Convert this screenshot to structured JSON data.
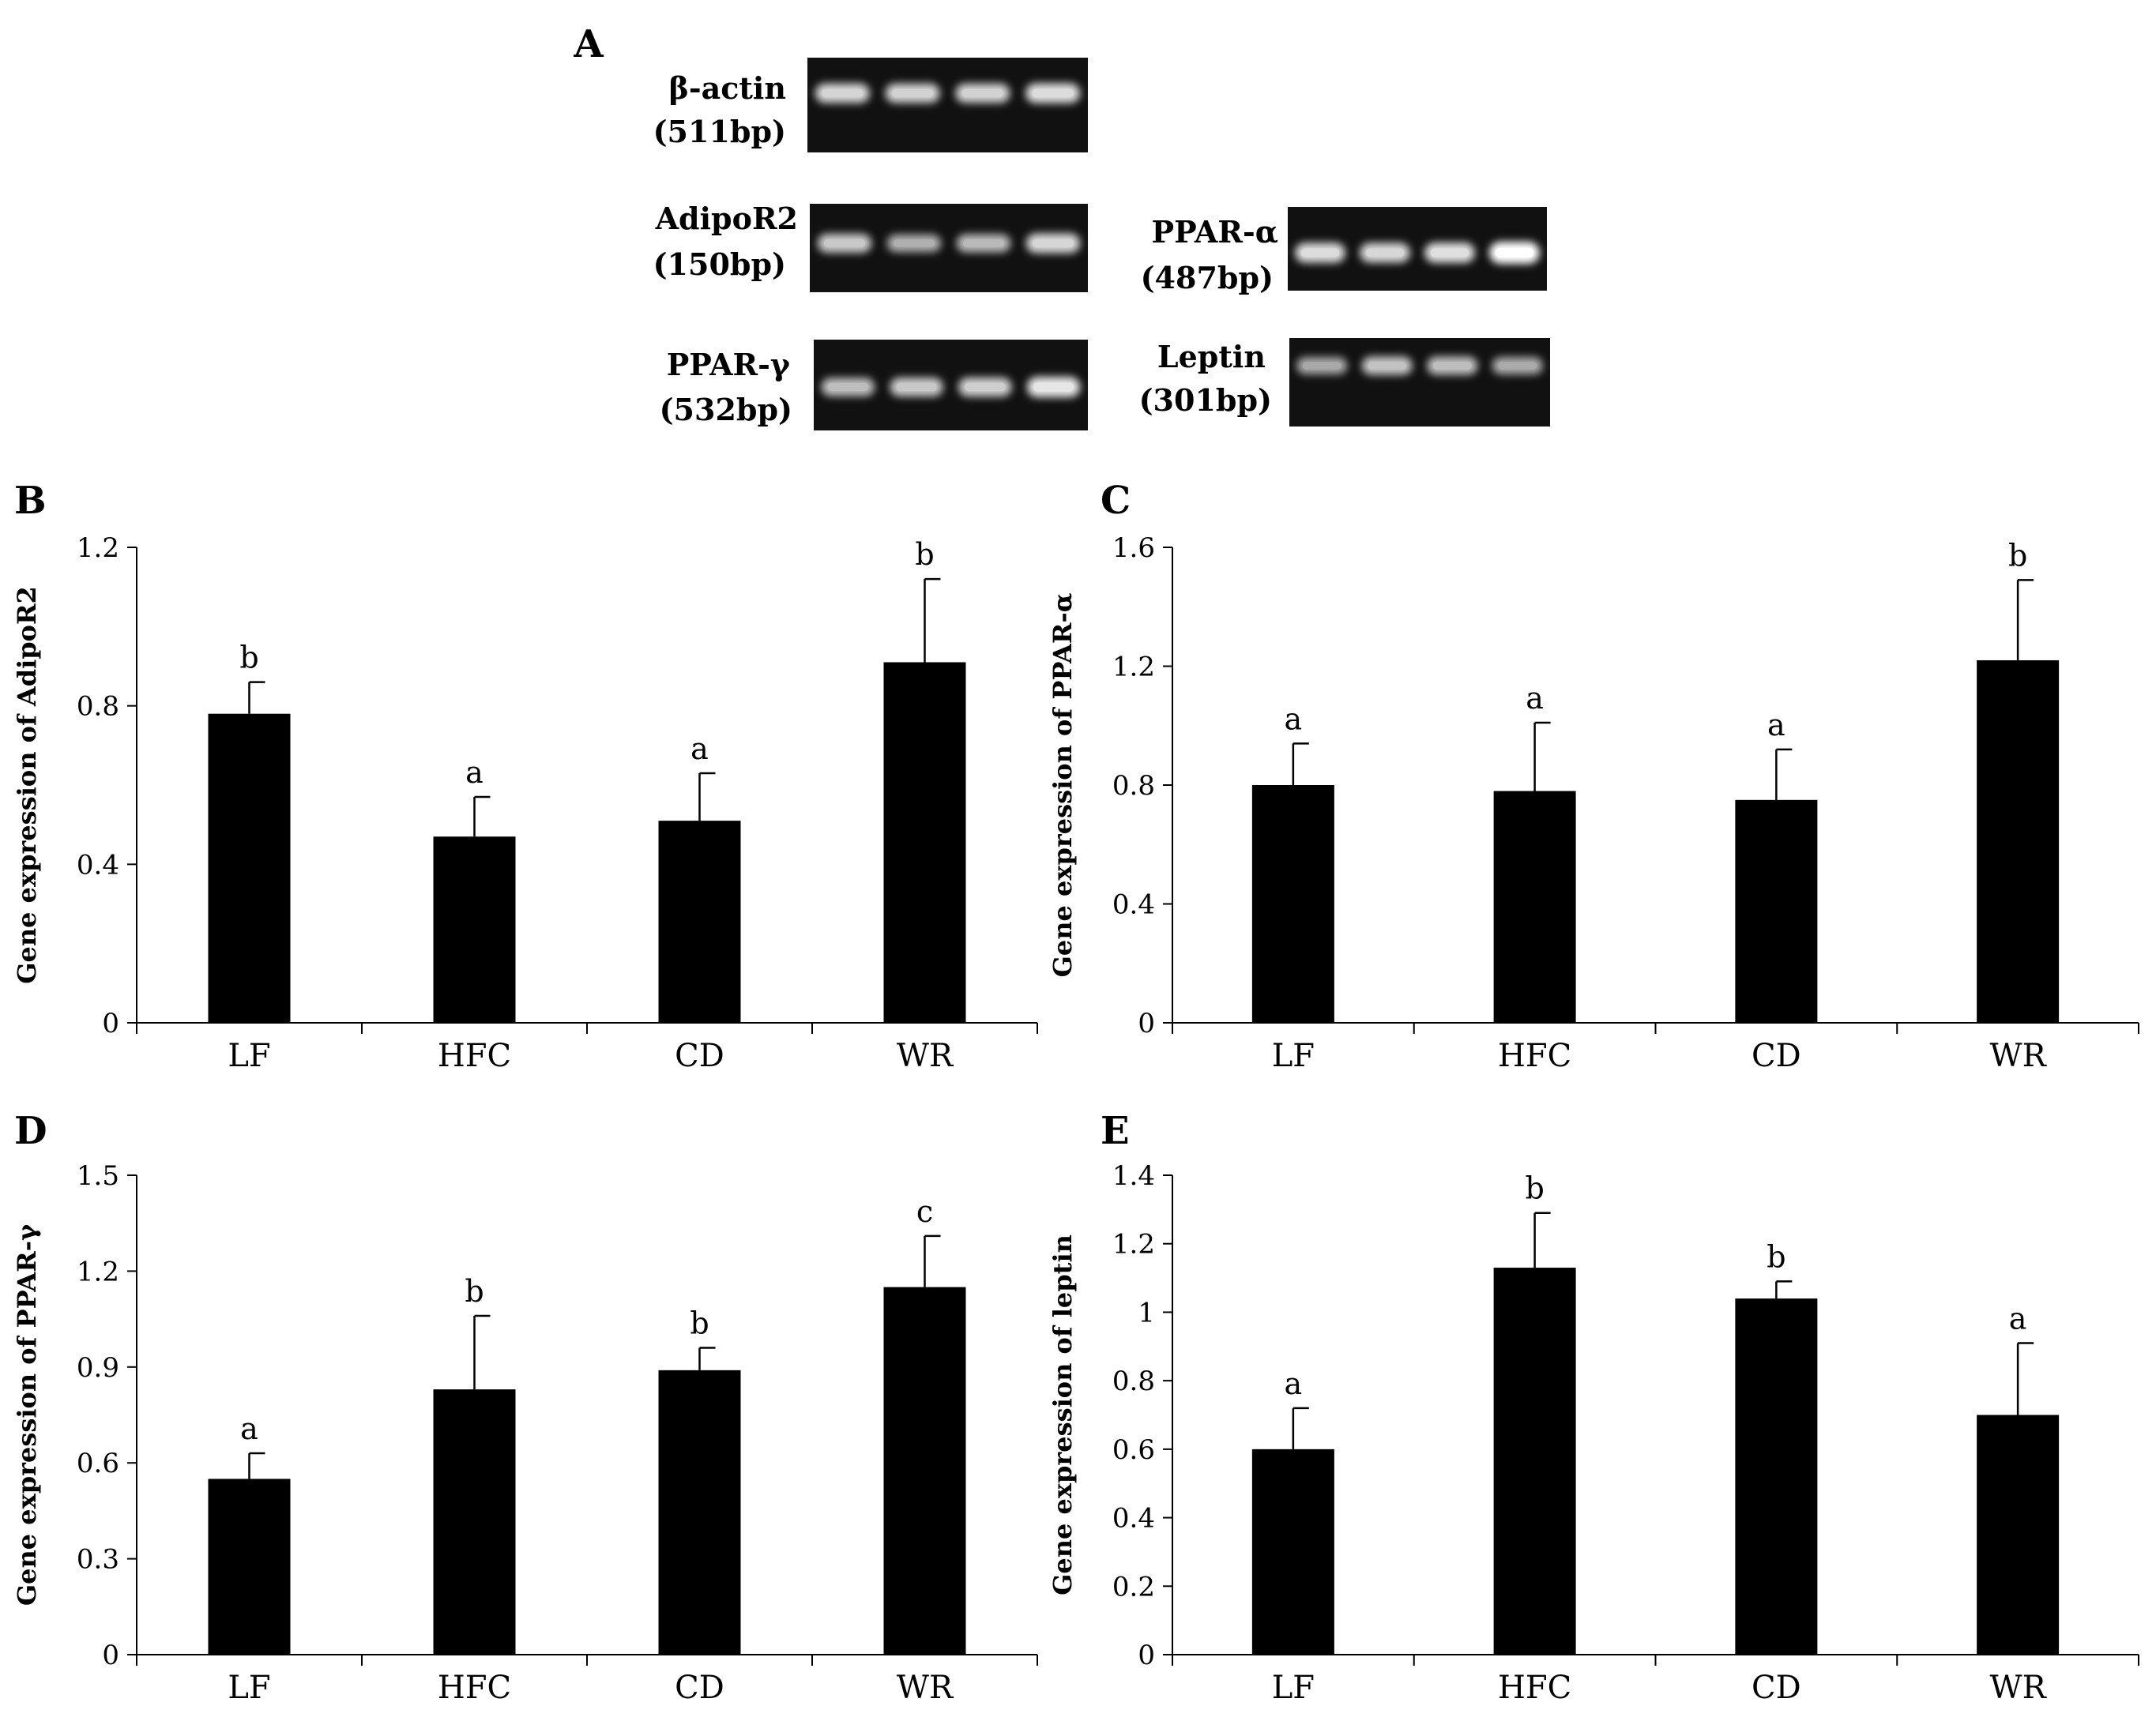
{
  "gel_panel": {
    "letter": "A",
    "gels": [
      {
        "id": "b-actin",
        "name": "β-actin",
        "size": "(511bp)",
        "band_intensity": [
          0.7,
          0.68,
          0.68,
          0.75
        ]
      },
      {
        "id": "adipor2",
        "name": "AdipoR2",
        "size": "(150bp)",
        "band_intensity": [
          0.62,
          0.45,
          0.52,
          0.72
        ]
      },
      {
        "id": "ppar-alpha",
        "name": "PPAR-α",
        "size": "(487bp)",
        "band_intensity": [
          0.75,
          0.72,
          0.78,
          1.0
        ]
      },
      {
        "id": "ppar-gamma",
        "name": "PPAR-γ",
        "size": "(532bp)",
        "band_intensity": [
          0.55,
          0.62,
          0.66,
          0.82
        ]
      },
      {
        "id": "leptin",
        "name": "Leptin",
        "size": "(301bp)",
        "band_intensity": [
          0.4,
          0.58,
          0.55,
          0.42
        ]
      }
    ]
  },
  "chart_data": [
    {
      "panel": "B",
      "type": "bar",
      "categories": [
        "LF",
        "HFC",
        "CD",
        "WR"
      ],
      "values": [
        0.78,
        0.47,
        0.51,
        0.91
      ],
      "errors": [
        0.08,
        0.1,
        0.12,
        0.21
      ],
      "annotations": [
        "b",
        "a",
        "a",
        "b"
      ],
      "ylabel": "Gene expression of AdipoR2",
      "ylim": [
        0,
        1.2
      ],
      "yticks": [
        "0",
        "0.4",
        "0.8",
        "1.2"
      ]
    },
    {
      "panel": "C",
      "type": "bar",
      "categories": [
        "LF",
        "HFC",
        "CD",
        "WR"
      ],
      "values": [
        0.8,
        0.78,
        0.75,
        1.22
      ],
      "errors": [
        0.14,
        0.23,
        0.17,
        0.27
      ],
      "annotations": [
        "a",
        "a",
        "a",
        "b"
      ],
      "ylabel": "Gene expression of PPAR-α",
      "ylim": [
        0,
        1.6
      ],
      "yticks": [
        "0",
        "0.4",
        "0.8",
        "1.2",
        "1.6"
      ]
    },
    {
      "panel": "D",
      "type": "bar",
      "categories": [
        "LF",
        "HFC",
        "CD",
        "WR"
      ],
      "values": [
        0.55,
        0.83,
        0.89,
        1.15
      ],
      "errors": [
        0.08,
        0.23,
        0.07,
        0.16
      ],
      "annotations": [
        "a",
        "b",
        "b",
        "c"
      ],
      "ylabel": "Gene expression of PPAR-γ",
      "ylim": [
        0,
        1.5
      ],
      "yticks": [
        "0",
        "0.3",
        "0.6",
        "0.9",
        "1.2",
        "1.5"
      ]
    },
    {
      "panel": "E",
      "type": "bar",
      "categories": [
        "LF",
        "HFC",
        "CD",
        "WR"
      ],
      "values": [
        0.6,
        1.13,
        1.04,
        0.7
      ],
      "errors": [
        0.12,
        0.16,
        0.05,
        0.21
      ],
      "annotations": [
        "a",
        "b",
        "b",
        "a"
      ],
      "ylabel": "Gene expression of leptin",
      "ylim": [
        0,
        1.4
      ],
      "yticks": [
        "0",
        "0.2",
        "0.4",
        "0.6",
        "0.8",
        "1",
        "1.2",
        "1.4"
      ]
    }
  ]
}
